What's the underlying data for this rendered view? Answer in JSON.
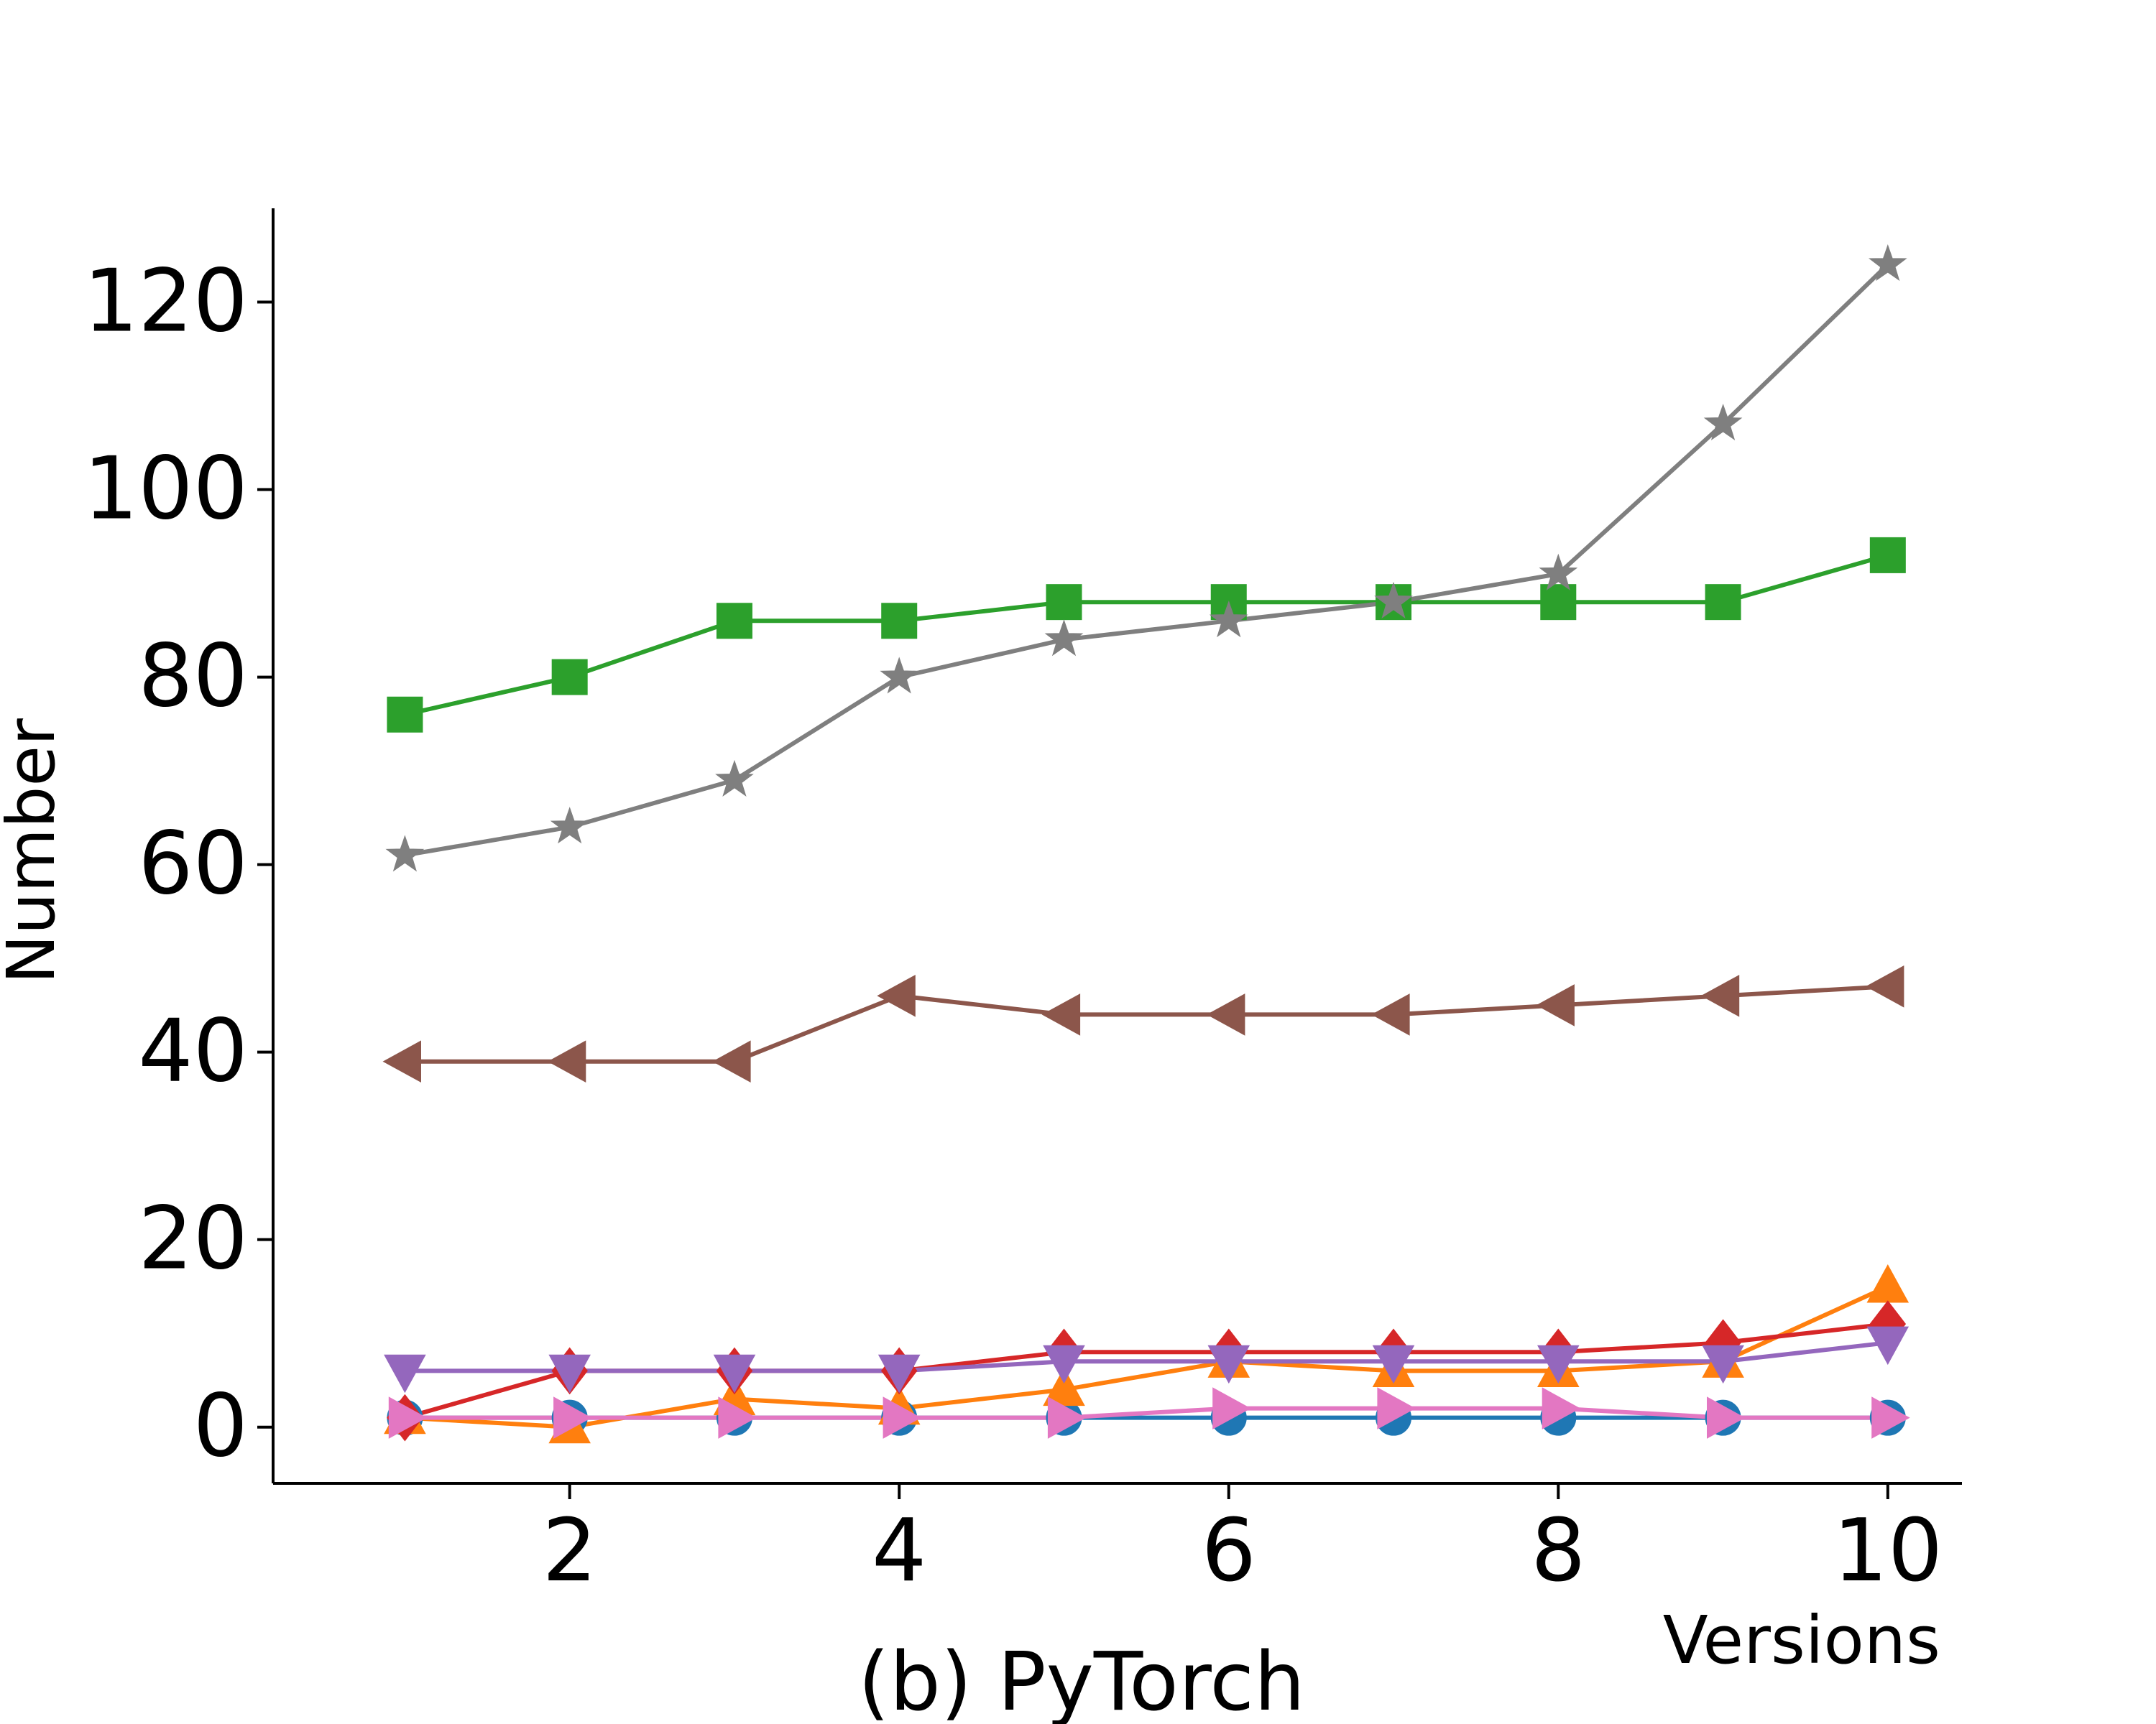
{
  "chart_data": {
    "type": "line",
    "title": "(b) PyTorch",
    "xlabel": "Versions",
    "ylabel": "Number",
    "x": [
      1,
      2,
      3,
      4,
      5,
      6,
      7,
      8,
      9,
      10
    ],
    "xlim": [
      0.2,
      10.45
    ],
    "ylim": [
      -6,
      130
    ],
    "xticks": [
      2,
      4,
      6,
      8,
      10
    ],
    "yticks": [
      0,
      20,
      40,
      60,
      80,
      100,
      120
    ],
    "grid": false,
    "legend": "none",
    "series": [
      {
        "color": "#1f77b4",
        "marker": "circle",
        "values": [
          1,
          1,
          1,
          1,
          1,
          1,
          1,
          1,
          1,
          1
        ]
      },
      {
        "color": "#ff7f0e",
        "marker": "triangle-up",
        "values": [
          1,
          0,
          3,
          2,
          4,
          7,
          6,
          6,
          7,
          15
        ]
      },
      {
        "color": "#2ca02c",
        "marker": "square",
        "values": [
          76,
          80,
          86,
          86,
          88,
          88,
          88,
          88,
          88,
          93
        ]
      },
      {
        "color": "#d62728",
        "marker": "diamond",
        "values": [
          1,
          6,
          6,
          6,
          8,
          8,
          8,
          8,
          9,
          11
        ]
      },
      {
        "color": "#9467bd",
        "marker": "triangle-down",
        "values": [
          6,
          6,
          6,
          6,
          7,
          7,
          7,
          7,
          7,
          9
        ]
      },
      {
        "color": "#8c564b",
        "marker": "triangle-left",
        "values": [
          39,
          39,
          39,
          46,
          44,
          44,
          44,
          45,
          46,
          47
        ]
      },
      {
        "color": "#e377c2",
        "marker": "triangle-right",
        "values": [
          1,
          1,
          1,
          1,
          1,
          2,
          2,
          2,
          1,
          1
        ]
      },
      {
        "color": "#7f7f7f",
        "marker": "star",
        "values": [
          61,
          64,
          69,
          80,
          84,
          86,
          88,
          91,
          107,
          124
        ]
      }
    ]
  }
}
